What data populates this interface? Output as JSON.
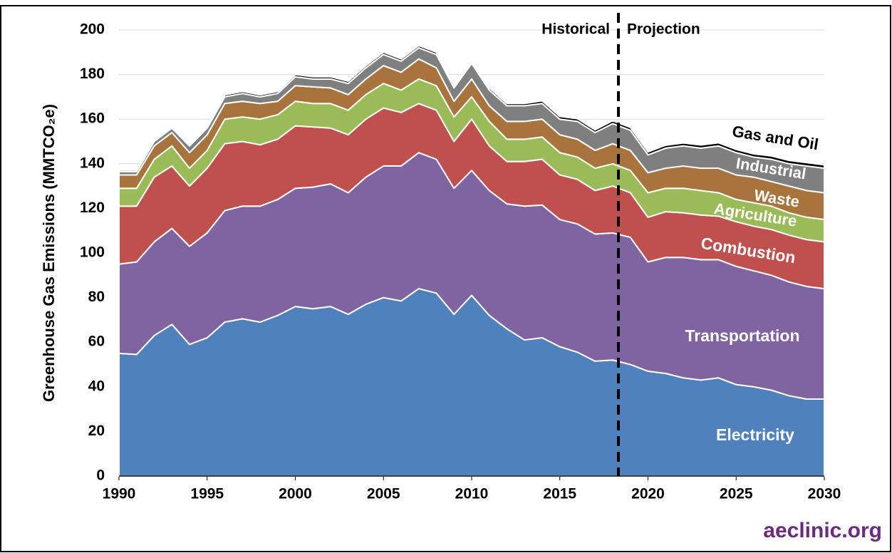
{
  "chart_data": {
    "type": "stacked_area",
    "y_label": "Greenhouse Gas Emissions (MMTCO₂e)",
    "annotations": [
      "Historical",
      "Projection"
    ],
    "watermark": "aeclinic.org",
    "x": [
      1990,
      1991,
      1992,
      1993,
      1994,
      1995,
      1996,
      1997,
      1998,
      1999,
      2000,
      2001,
      2002,
      2003,
      2004,
      2005,
      2006,
      2007,
      2008,
      2009,
      2010,
      2011,
      2012,
      2013,
      2014,
      2015,
      2016,
      2017,
      2018,
      2019,
      2020,
      2021,
      2022,
      2023,
      2024,
      2025,
      2026,
      2027,
      2028,
      2029,
      2030
    ],
    "xlim": [
      1990,
      2030
    ],
    "xticks": [
      1990,
      1995,
      2000,
      2005,
      2010,
      2015,
      2020,
      2025,
      2030
    ],
    "ylim": [
      0,
      200
    ],
    "yticks": [
      0,
      20,
      40,
      60,
      80,
      100,
      120,
      140,
      160,
      180,
      200
    ],
    "grid": true,
    "series": [
      {
        "name": "Electricity",
        "color": "#4f81bd",
        "values": [
          55,
          54.5,
          63,
          68,
          59,
          62,
          69,
          70.5,
          69,
          72,
          76,
          75,
          76,
          72.5,
          77,
          80,
          78.5,
          84,
          82,
          72.5,
          81,
          72,
          66,
          61,
          62,
          58,
          55.5,
          51.5,
          52,
          50,
          47,
          46,
          44,
          43,
          44,
          41,
          40,
          38.5,
          36,
          34.5,
          34.5
        ]
      },
      {
        "name": "Transportation",
        "color": "#8064a2",
        "values": [
          40,
          41.5,
          42,
          43,
          44,
          47,
          50,
          50.5,
          52,
          52,
          53,
          54.5,
          55,
          54.5,
          57,
          59,
          60.5,
          61,
          60,
          56.5,
          56,
          56,
          56,
          60,
          59.5,
          57,
          57.5,
          57,
          57,
          57,
          49,
          52,
          54,
          54,
          53,
          53,
          52,
          51.5,
          51,
          50.5,
          49.5
        ]
      },
      {
        "name": "Combustion",
        "color": "#c0504d",
        "values": [
          26,
          25,
          29,
          28,
          27,
          29,
          30,
          29,
          27.5,
          27,
          28,
          27,
          25,
          26,
          26,
          26,
          24,
          22,
          22,
          21,
          23,
          20,
          19,
          20,
          20.5,
          20,
          20,
          19.5,
          21,
          20,
          20,
          20.5,
          20,
          20,
          19.5,
          20,
          20,
          20.5,
          21,
          21,
          21
        ]
      },
      {
        "name": "Agriculture",
        "color": "#9bbb59",
        "values": [
          8,
          8,
          8,
          9,
          8,
          8,
          11,
          11,
          11.5,
          11,
          11,
          10.5,
          11,
          11,
          11,
          11,
          10,
          11,
          11,
          11,
          10,
          11,
          10,
          10,
          10,
          10,
          10,
          10,
          10,
          10,
          11,
          10.5,
          11,
          11,
          10.5,
          10,
          10.5,
          10.5,
          10,
          10,
          10
        ]
      },
      {
        "name": "Waste",
        "color": "#a8733d",
        "values": [
          6,
          6,
          6,
          6,
          7,
          7,
          7,
          7,
          7,
          6,
          7,
          7.5,
          7,
          7,
          7,
          8,
          8,
          9,
          8,
          7,
          8,
          7,
          8,
          8,
          8,
          8,
          8,
          8,
          9,
          9,
          9,
          9,
          10,
          10,
          11,
          11,
          11.5,
          11,
          12,
          12,
          12
        ]
      },
      {
        "name": "Industrial",
        "color": "#7f7f7f",
        "values": [
          1.5,
          1.5,
          2,
          2,
          3,
          3,
          3,
          3.5,
          3,
          3.5,
          4,
          3.5,
          4,
          5,
          5,
          5,
          5,
          5,
          6,
          6,
          7,
          7,
          7,
          7,
          7,
          7,
          8,
          8,
          9,
          9,
          8,
          9,
          9,
          9,
          10,
          10,
          9,
          10,
          10,
          11,
          11
        ]
      },
      {
        "name": "Gas and Oil",
        "color": "#000000",
        "values": [
          0.7,
          0.7,
          0.8,
          0.8,
          0.8,
          0.8,
          0.9,
          0.9,
          0.9,
          0.9,
          1,
          1,
          1,
          1,
          1,
          1,
          1,
          1,
          1,
          1,
          1,
          1,
          1,
          1,
          1.2,
          1.2,
          1.2,
          1.2,
          1.3,
          1.3,
          1.3,
          1.3,
          1.3,
          1.4,
          1.4,
          1.4,
          1.4,
          1.5,
          1.5,
          1.5,
          1.5
        ]
      }
    ]
  }
}
